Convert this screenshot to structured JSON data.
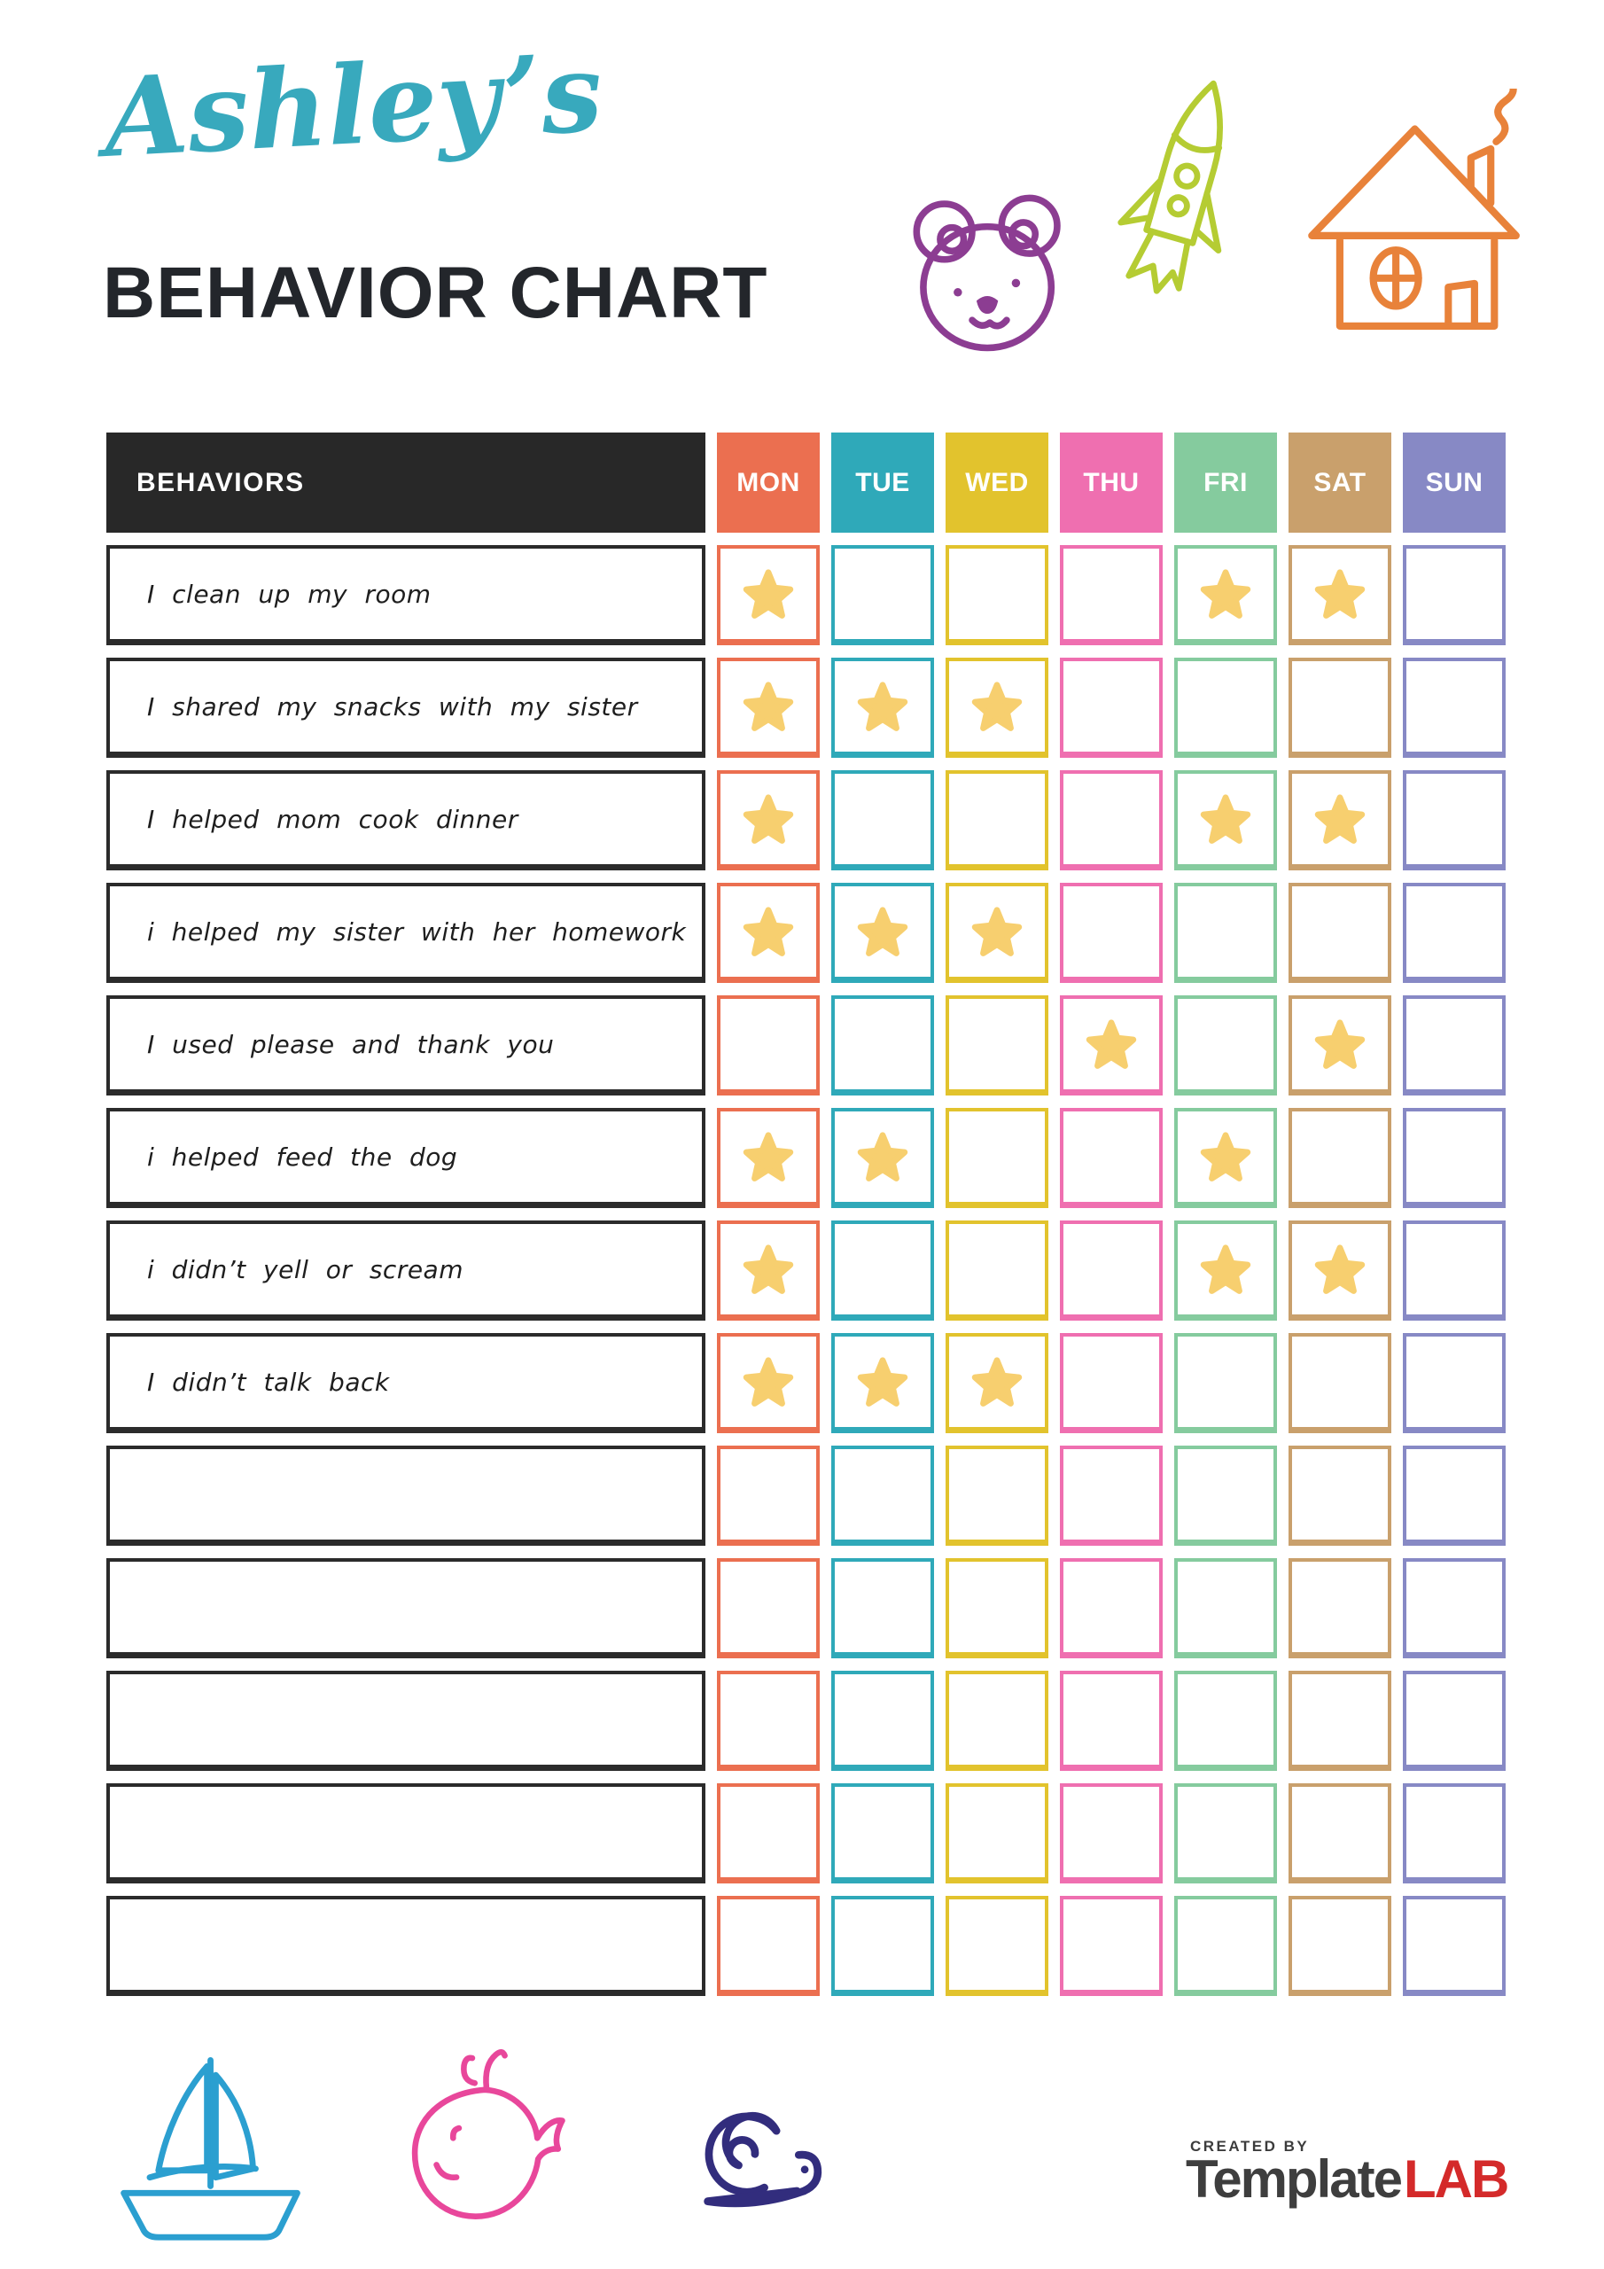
{
  "title": {
    "name": "Ashley’s",
    "heading": "BEHAVIOR CHART"
  },
  "colors": {
    "title_script": "#38a9bd",
    "heading_text": "#23262b",
    "header_bg": "#282828",
    "header_text": "#ffffff",
    "row_border": "#2b2b2b",
    "star": "#f7cf6f"
  },
  "table": {
    "behaviors_header": "BEHAVIORS",
    "days": [
      {
        "label": "MON",
        "color": "#eb6f50"
      },
      {
        "label": "TUE",
        "color": "#2fa9b9"
      },
      {
        "label": "WED",
        "color": "#e2c32d"
      },
      {
        "label": "THU",
        "color": "#ef6fb0"
      },
      {
        "label": "FRI",
        "color": "#85cb9e"
      },
      {
        "label": "SAT",
        "color": "#c9a06c"
      },
      {
        "label": "SUN",
        "color": "#8789c5"
      }
    ],
    "rows": [
      {
        "label": "I clean up my room",
        "stars": [
          "MON",
          "FRI",
          "SAT"
        ]
      },
      {
        "label": "I shared my snacks with my sister",
        "stars": [
          "MON",
          "TUE",
          "WED"
        ]
      },
      {
        "label": "I helped mom cook dinner",
        "stars": [
          "MON",
          "FRI",
          "SAT"
        ]
      },
      {
        "label": "i helped my sister with her homework",
        "stars": [
          "MON",
          "TUE",
          "WED"
        ]
      },
      {
        "label": "I used please and thank you",
        "stars": [
          "THU",
          "SAT"
        ]
      },
      {
        "label": "i helped feed the dog",
        "stars": [
          "MON",
          "TUE",
          "FRI"
        ]
      },
      {
        "label": "i didn’t yell or scream",
        "stars": [
          "MON",
          "FRI",
          "SAT"
        ]
      },
      {
        "label": "I didn’t talk back",
        "stars": [
          "MON",
          "TUE",
          "WED"
        ]
      },
      {
        "label": "",
        "stars": []
      },
      {
        "label": "",
        "stars": []
      },
      {
        "label": "",
        "stars": []
      },
      {
        "label": "",
        "stars": []
      },
      {
        "label": "",
        "stars": []
      }
    ]
  },
  "doodles": {
    "bear": "#8c3d92",
    "rocket": "#b5cc33",
    "house": "#e8823a",
    "boat": "#2b9fd0",
    "whale": "#e8479b",
    "snail": "#322d7d"
  },
  "footer": {
    "created_by": "CREATED BY",
    "brand_template": "Template",
    "brand_lab": "LAB"
  }
}
